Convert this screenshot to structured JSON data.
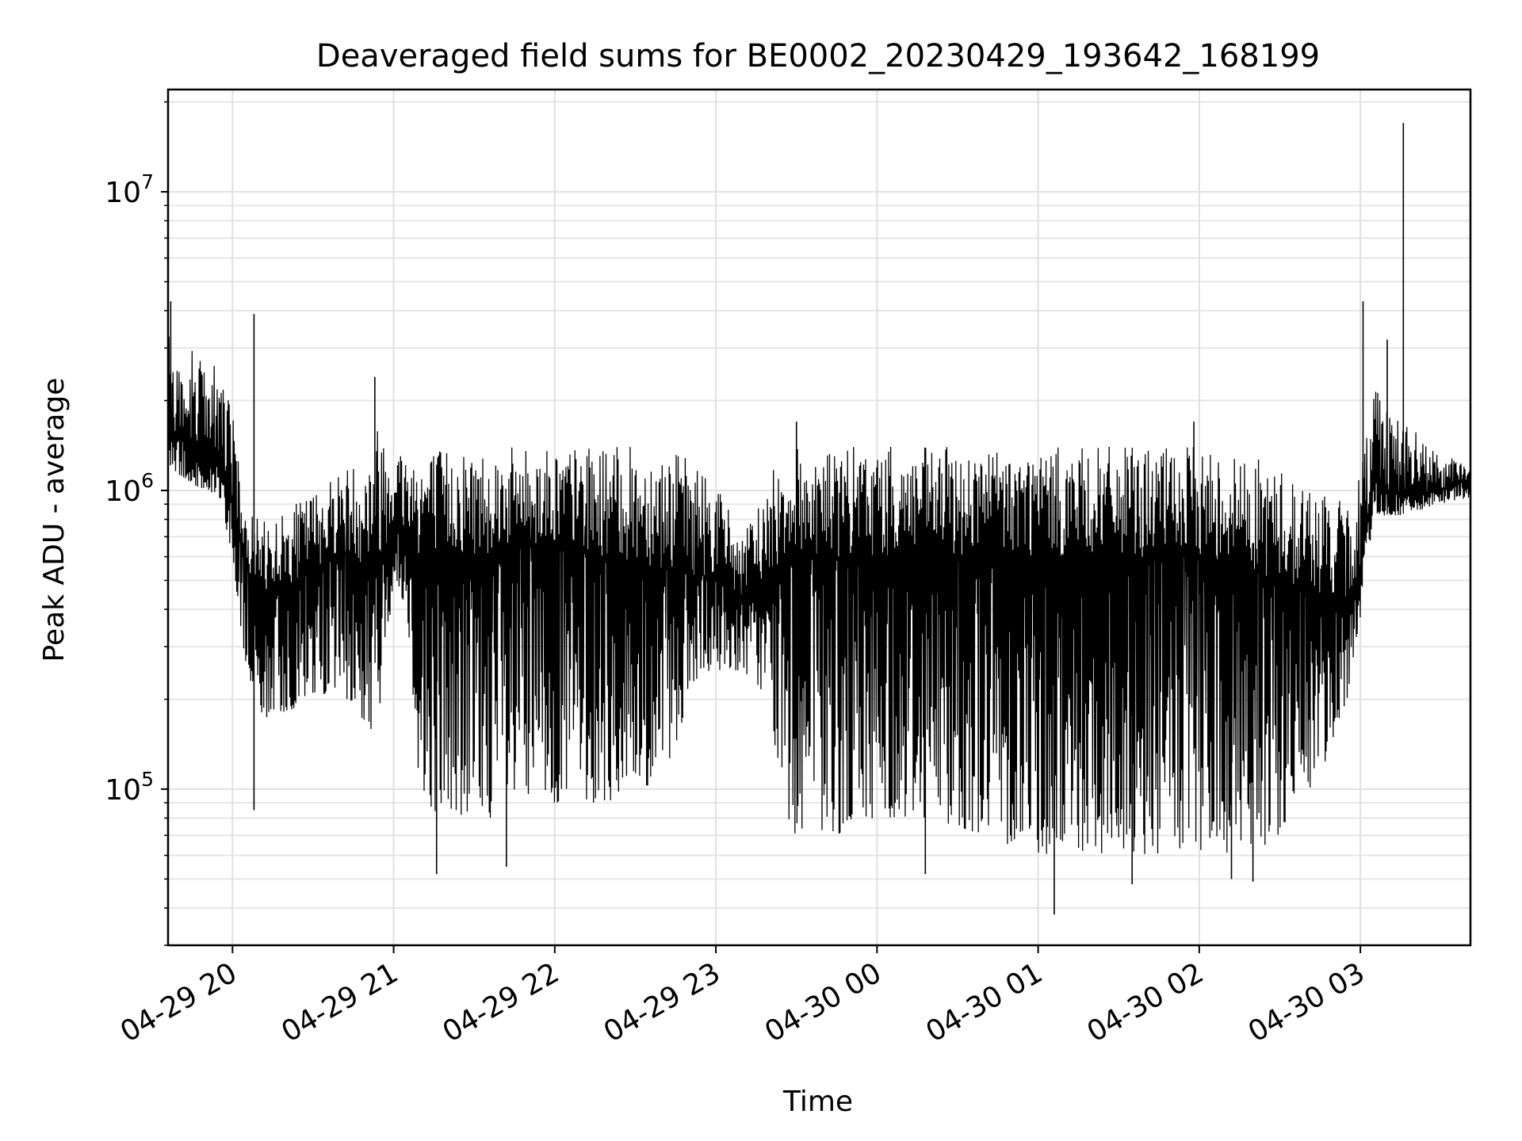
{
  "chart_data": {
    "type": "line",
    "title": "Deaveraged field sums for BE0002_20230429_193642_168199",
    "xlabel": "Time",
    "ylabel": "Peak ADU - average",
    "xlim": [
      "2023-04-29 19:36",
      "2023-04-30 03:41"
    ],
    "ylim": [
      30000,
      22000000
    ],
    "y_scale": "log",
    "grid": "on (major and minor)",
    "x_ticks": [
      {
        "t": "2023-04-29 20:00",
        "label": "04-29 20"
      },
      {
        "t": "2023-04-29 21:00",
        "label": "04-29 21"
      },
      {
        "t": "2023-04-29 22:00",
        "label": "04-29 22"
      },
      {
        "t": "2023-04-29 23:00",
        "label": "04-29 23"
      },
      {
        "t": "2023-04-30 00:00",
        "label": "04-30 00"
      },
      {
        "t": "2023-04-30 01:00",
        "label": "04-30 01"
      },
      {
        "t": "2023-04-30 02:00",
        "label": "04-30 02"
      },
      {
        "t": "2023-04-30 03:00",
        "label": "04-30 03"
      }
    ],
    "y_ticks": [
      {
        "value": 100000,
        "base": "10",
        "exp": "5"
      },
      {
        "value": 1000000,
        "base": "10",
        "exp": "6"
      },
      {
        "value": 10000000,
        "base": "10",
        "exp": "7"
      }
    ],
    "line_color": "#000000",
    "envelope": {
      "x": [
        "2023-04-29 19:36",
        "2023-04-29 19:45",
        "2023-04-29 19:50",
        "2023-04-29 19:55",
        "2023-04-29 20:00",
        "2023-04-29 20:05",
        "2023-04-29 20:10",
        "2023-04-29 20:20",
        "2023-04-29 20:30",
        "2023-04-29 20:40",
        "2023-04-29 20:50",
        "2023-04-29 20:55",
        "2023-04-29 21:00",
        "2023-04-29 21:05",
        "2023-04-29 21:10",
        "2023-04-29 21:20",
        "2023-04-29 21:30",
        "2023-04-29 21:45",
        "2023-04-29 22:00",
        "2023-04-29 22:20",
        "2023-04-29 22:40",
        "2023-04-29 22:50",
        "2023-04-29 23:00",
        "2023-04-29 23:10",
        "2023-04-29 23:20",
        "2023-04-29 23:25",
        "2023-04-29 23:30",
        "2023-04-29 23:45",
        "2023-04-30 00:00",
        "2023-04-30 00:20",
        "2023-04-30 00:40",
        "2023-04-30 01:00",
        "2023-04-30 01:20",
        "2023-04-30 01:40",
        "2023-04-30 02:00",
        "2023-04-30 02:20",
        "2023-04-30 02:30",
        "2023-04-30 02:45",
        "2023-04-30 02:55",
        "2023-04-30 03:00",
        "2023-04-30 03:05",
        "2023-04-30 03:10",
        "2023-04-30 03:20",
        "2023-04-30 03:30",
        "2023-04-30 03:41"
      ],
      "high": [
        3500000,
        3000000,
        2800000,
        2600000,
        1800000,
        1000000,
        800000,
        850000,
        1000000,
        1200000,
        1300000,
        1800000,
        1500000,
        1400000,
        1400000,
        1400000,
        1400000,
        1400000,
        1400000,
        1400000,
        1400000,
        1300000,
        1100000,
        700000,
        1100000,
        1400000,
        1400000,
        1400000,
        1400000,
        1400000,
        1400000,
        1400000,
        1400000,
        1400000,
        1400000,
        1300000,
        1200000,
        1000000,
        900000,
        1200000,
        2500000,
        2000000,
        1600000,
        1300000,
        1250000
      ],
      "mid": [
        1600000,
        1400000,
        1300000,
        1200000,
        900000,
        550000,
        450000,
        480000,
        550000,
        620000,
        560000,
        600000,
        750000,
        700000,
        600000,
        600000,
        600000,
        650000,
        650000,
        600000,
        550000,
        520000,
        520000,
        430000,
        500000,
        600000,
        600000,
        600000,
        600000,
        600000,
        600000,
        600000,
        600000,
        600000,
        600000,
        550000,
        480000,
        450000,
        420000,
        500000,
        1200000,
        1000000,
        950000,
        1000000,
        1100000
      ],
      "low": [
        1200000,
        1050000,
        1000000,
        950000,
        600000,
        250000,
        170000,
        180000,
        200000,
        220000,
        150000,
        180000,
        500000,
        400000,
        90000,
        80000,
        80000,
        80000,
        90000,
        90000,
        100000,
        200000,
        250000,
        250000,
        200000,
        80000,
        70000,
        70000,
        80000,
        80000,
        70000,
        60000,
        60000,
        60000,
        60000,
        60000,
        70000,
        110000,
        200000,
        350000,
        850000,
        800000,
        850000,
        900000,
        950000
      ]
    },
    "spikes": [
      {
        "t": "2023-04-29 19:37",
        "value": 4300000
      },
      {
        "t": "2023-04-29 20:08",
        "value": 3900000
      },
      {
        "t": "2023-04-29 20:08",
        "value": 85000
      },
      {
        "t": "2023-04-29 20:53",
        "value": 2400000
      },
      {
        "t": "2023-04-29 21:16",
        "value": 52000
      },
      {
        "t": "2023-04-29 21:42",
        "value": 55000
      },
      {
        "t": "2023-04-29 23:30",
        "value": 1700000
      },
      {
        "t": "2023-04-30 00:18",
        "value": 52000
      },
      {
        "t": "2023-04-30 01:06",
        "value": 38000
      },
      {
        "t": "2023-04-30 01:35",
        "value": 48000
      },
      {
        "t": "2023-04-30 01:58",
        "value": 1700000
      },
      {
        "t": "2023-04-30 02:12",
        "value": 50000
      },
      {
        "t": "2023-04-30 02:20",
        "value": 49000
      },
      {
        "t": "2023-04-30 03:01",
        "value": 4300000
      },
      {
        "t": "2023-04-30 03:10",
        "value": 3200000
      },
      {
        "t": "2023-04-30 03:16",
        "value": 17000000
      }
    ]
  }
}
